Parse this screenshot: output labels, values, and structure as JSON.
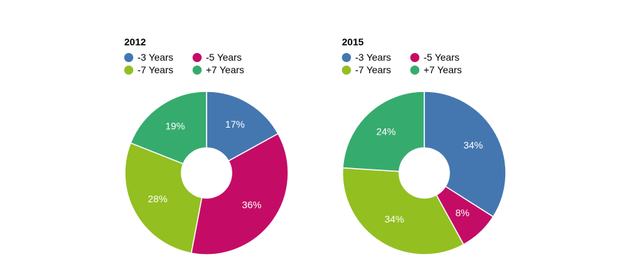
{
  "colors": {
    "-3 Years": "#4477b0",
    "-5 Years": "#c40c66",
    "-7 Years": "#93bf21",
    "+7 Years": "#36ab6e",
    "background": "#ffffff"
  },
  "legend_labels": [
    "-3 Years",
    "-5 Years",
    "-7 Years",
    "+7 Years"
  ],
  "chart_data": [
    {
      "type": "pie",
      "title": "2012",
      "donut": true,
      "categories": [
        "-3 Years",
        "-5 Years",
        "-7 Years",
        "+7 Years"
      ],
      "values": [
        17,
        36,
        28,
        19
      ],
      "labels": [
        "17%",
        "36%",
        "28%",
        "19%"
      ]
    },
    {
      "type": "pie",
      "title": "2015",
      "donut": true,
      "categories": [
        "-3 Years",
        "-5 Years",
        "-7 Years",
        "+7 Years"
      ],
      "values": [
        34,
        8,
        34,
        24
      ],
      "labels": [
        "34%",
        "8%",
        "34%",
        "24%"
      ]
    }
  ]
}
